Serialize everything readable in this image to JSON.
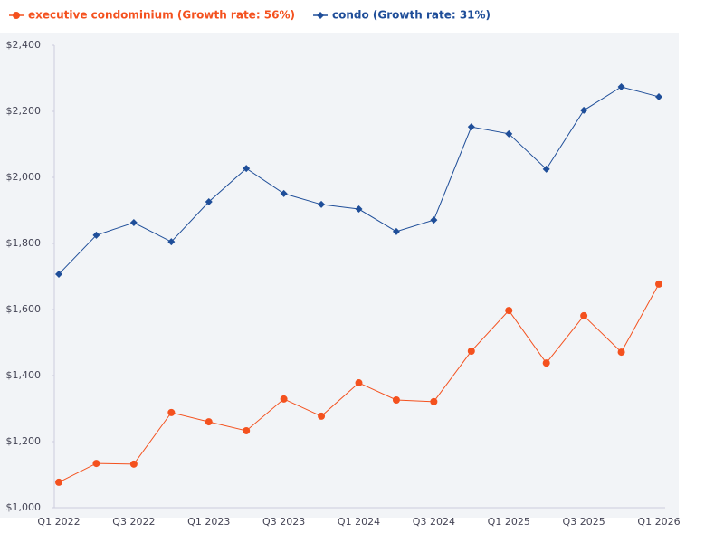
{
  "chart_data": {
    "type": "line",
    "categories": [
      "Q1 2022",
      null,
      "Q3 2022",
      null,
      "Q1 2023",
      null,
      "Q3 2023",
      null,
      "Q1 2024",
      null,
      "Q3 2024",
      null,
      "Q1 2025",
      null,
      "Q3 2025",
      null,
      "Q1 2026"
    ],
    "series": [
      {
        "name": "executive condominium (Growth rate: 56%)",
        "color": "#f4511e",
        "marker": "circle",
        "values": [
          1077,
          1134,
          1132,
          1288,
          1260,
          1233,
          1329,
          1277,
          1378,
          1326,
          1321,
          1474,
          1597,
          1438,
          1581,
          1471,
          1677
        ]
      },
      {
        "name": "condo (Growth rate: 31%)",
        "color": "#1f4e99",
        "marker": "diamond",
        "values": [
          1707,
          1825,
          1863,
          1805,
          1926,
          2027,
          1951,
          1918,
          1904,
          1836,
          1871,
          2153,
          2132,
          2025,
          2203,
          2274,
          2244
        ]
      }
    ],
    "ylim": [
      1000,
      2400
    ],
    "yticks": [
      {
        "value": 1000,
        "label": "$1,000"
      },
      {
        "value": 1200,
        "label": "$1,200"
      },
      {
        "value": 1400,
        "label": "$1,400"
      },
      {
        "value": 1600,
        "label": "$1,600"
      },
      {
        "value": 1800,
        "label": "$1,800"
      },
      {
        "value": 2000,
        "label": "$2,000"
      },
      {
        "value": 2200,
        "label": "$2,200"
      },
      {
        "value": 2400,
        "label": "$2,400"
      }
    ],
    "grid": false
  }
}
